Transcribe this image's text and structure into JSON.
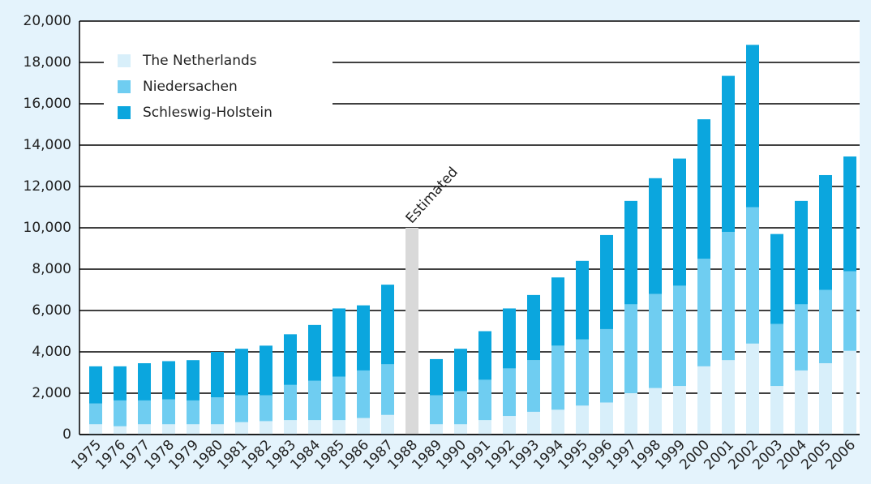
{
  "chart_data": {
    "type": "stacked_bar",
    "categories": [
      "1975",
      "1976",
      "1977",
      "1978",
      "1979",
      "1980",
      "1981",
      "1982",
      "1983",
      "1984",
      "1985",
      "1986",
      "1987",
      "1988",
      "1989",
      "1990",
      "1991",
      "1992",
      "1993",
      "1994",
      "1995",
      "1996",
      "1997",
      "1998",
      "1999",
      "2000",
      "2001",
      "2002",
      "2003",
      "2004",
      "2005",
      "2006"
    ],
    "series": [
      {
        "name": "The Netherlands",
        "color": "#d8effa",
        "values": [
          500,
          400,
          500,
          500,
          500,
          500,
          600,
          650,
          700,
          700,
          700,
          800,
          950,
          null,
          500,
          500,
          700,
          900,
          1100,
          1200,
          1400,
          1550,
          2000,
          2250,
          2350,
          3300,
          3600,
          4400,
          2350,
          3100,
          3450,
          4050
        ]
      },
      {
        "name": "Niedersachen",
        "color": "#6fcdf1",
        "values": [
          1000,
          1250,
          1150,
          1200,
          1150,
          1300,
          1300,
          1250,
          1700,
          1900,
          2100,
          2300,
          2450,
          null,
          1400,
          1600,
          1950,
          2300,
          2500,
          3100,
          3200,
          3550,
          4300,
          4550,
          4850,
          5200,
          6200,
          6600,
          3000,
          3200,
          3550,
          3850
        ]
      },
      {
        "name": "Schleswig-Holstein",
        "color": "#0ba6de",
        "values": [
          1800,
          1650,
          1800,
          1850,
          1950,
          2200,
          2250,
          2400,
          2450,
          2700,
          3300,
          3150,
          3850,
          null,
          1750,
          2050,
          2350,
          2900,
          3150,
          3300,
          3800,
          4550,
          5000,
          5600,
          6150,
          6750,
          7550,
          7850,
          4350,
          5000,
          5550,
          5550
        ]
      }
    ],
    "estimated": {
      "label": "Estimated",
      "category": "1988",
      "value": 10000,
      "color": "#d9d9d9"
    },
    "ylim": [
      0,
      20000
    ],
    "yticks": [
      0,
      {
        "value": 2000,
        "label": "2,000"
      },
      {
        "value": 4000,
        "label": "4,000"
      },
      {
        "value": 6000,
        "label": "6,000"
      },
      {
        "value": 8000,
        "label": "8,000"
      },
      {
        "value": 10000,
        "label": "10,000"
      },
      {
        "value": 12000,
        "label": "12,000"
      },
      {
        "value": 14000,
        "label": "14,000"
      },
      {
        "value": 16000,
        "label": "16,000"
      },
      {
        "value": 18000,
        "label": "18,000"
      },
      {
        "value": 20000,
        "label": "20,000"
      }
    ],
    "grid": true,
    "legend": "upper left"
  }
}
